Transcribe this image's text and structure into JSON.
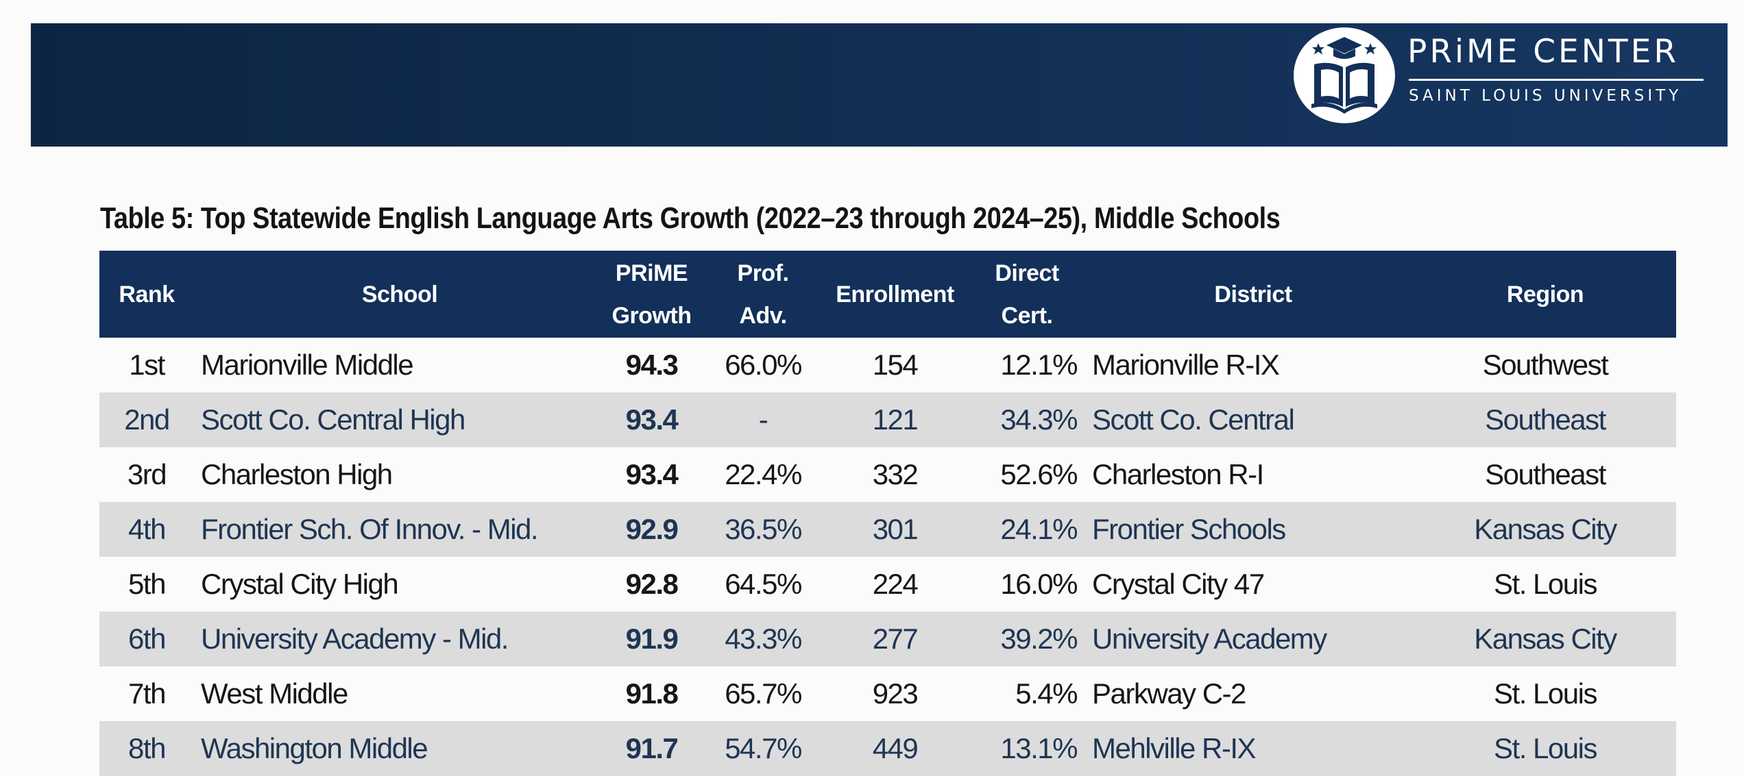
{
  "header": {
    "brand_name": "PRiME CENTER",
    "brand_subtitle": "SAINT LOUIS UNIVERSITY",
    "logo_icon": "open-book-graduation-cap-icon",
    "colors": {
      "banner": "#112c4f",
      "table_header": "#13305a",
      "alt_row": "#dcdcdc"
    }
  },
  "table": {
    "title": "Table 5: Top Statewide English Language Arts Growth (2022–23 through 2024–25), Middle Schools",
    "columns": {
      "rank": "Rank",
      "school": "School",
      "growth_1": "PRiME",
      "growth_2": "Growth",
      "prof_1": "Prof.",
      "prof_2": "Adv.",
      "enrollment": "Enrollment",
      "cert_1": "Direct",
      "cert_2": "Cert.",
      "district": "District",
      "region": "Region"
    },
    "rows": [
      {
        "rank": "1st",
        "school": "Marionville Middle",
        "growth": "94.3",
        "prof": "66.0%",
        "enrollment": "154",
        "cert": "12.1%",
        "district": "Marionville R-IX",
        "region": "Southwest"
      },
      {
        "rank": "2nd",
        "school": "Scott Co. Central High",
        "growth": "93.4",
        "prof": "-",
        "enrollment": "121",
        "cert": "34.3%",
        "district": "Scott Co. Central",
        "region": "Southeast"
      },
      {
        "rank": "3rd",
        "school": "Charleston High",
        "growth": "93.4",
        "prof": "22.4%",
        "enrollment": "332",
        "cert": "52.6%",
        "district": "Charleston R-I",
        "region": "Southeast"
      },
      {
        "rank": "4th",
        "school": "Frontier Sch. Of Innov. - Mid.",
        "growth": "92.9",
        "prof": "36.5%",
        "enrollment": "301",
        "cert": "24.1%",
        "district": "Frontier Schools",
        "region": "Kansas City"
      },
      {
        "rank": "5th",
        "school": "Crystal City High",
        "growth": "92.8",
        "prof": "64.5%",
        "enrollment": "224",
        "cert": "16.0%",
        "district": "Crystal City 47",
        "region": "St. Louis"
      },
      {
        "rank": "6th",
        "school": "University Academy - Mid.",
        "growth": "91.9",
        "prof": "43.3%",
        "enrollment": "277",
        "cert": "39.2%",
        "district": "University Academy",
        "region": "Kansas City"
      },
      {
        "rank": "7th",
        "school": "West Middle",
        "growth": "91.8",
        "prof": "65.7%",
        "enrollment": "923",
        "cert": "5.4%",
        "district": "Parkway C-2",
        "region": "St. Louis"
      },
      {
        "rank": "8th",
        "school": "Washington Middle",
        "growth": "91.7",
        "prof": "54.7%",
        "enrollment": "449",
        "cert": "13.1%",
        "district": "Mehlville R-IX",
        "region": "St. Louis"
      }
    ]
  }
}
